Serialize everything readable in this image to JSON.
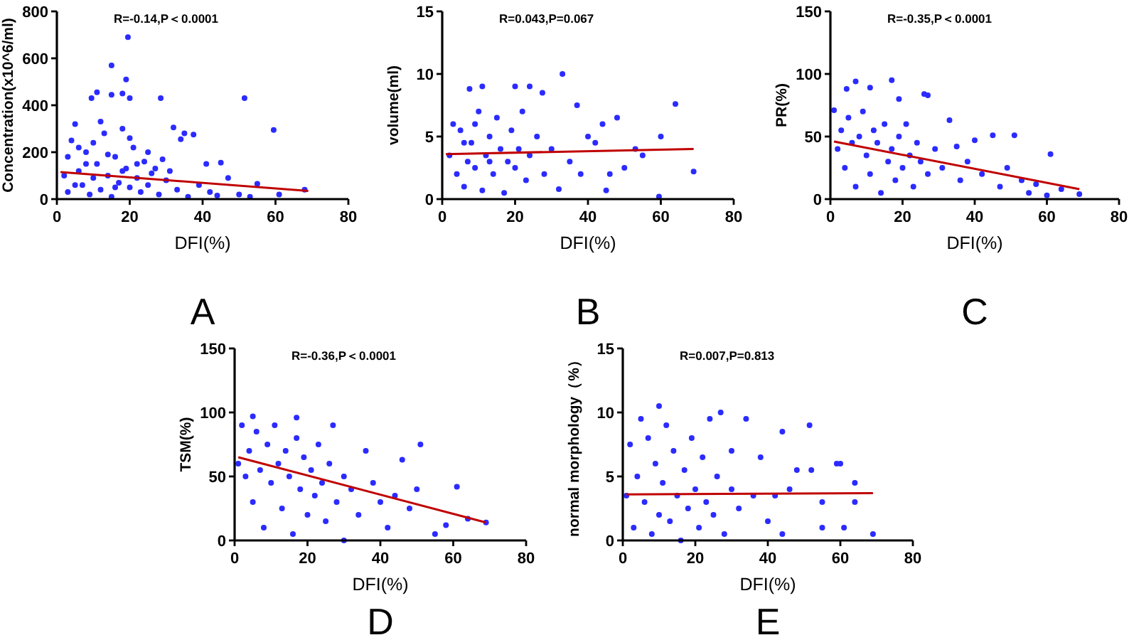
{
  "chart_data": [
    {
      "type": "scatter",
      "title": "A",
      "xlabel": "DFI(%)",
      "ylabel": "Concentration(x10^6/ml)",
      "annotations": [
        "R=-0.14,P＜0.0001"
      ],
      "xlim": [
        0,
        80
      ],
      "xticks": [
        0,
        20,
        40,
        60,
        80
      ],
      "ylim": [
        0,
        800
      ],
      "yticks": [
        0,
        200,
        400,
        600,
        800
      ],
      "grid": false,
      "marker": "circle",
      "series": [
        {
          "color": "#2b2bff",
          "x": [
            19.5,
            15,
            19,
            11,
            15,
            18,
            9.5,
            20,
            28.5,
            51.5,
            59.5,
            32,
            37.5,
            34,
            35,
            41,
            45,
            55,
            61,
            68,
            3,
            4,
            5,
            6,
            7,
            8,
            9,
            10,
            11,
            12,
            13,
            14,
            15,
            16,
            17,
            18,
            19,
            20,
            21,
            22,
            23,
            24,
            25,
            26,
            28,
            30,
            33,
            36,
            39,
            42,
            47,
            50,
            2,
            3,
            5,
            6,
            8,
            10,
            12,
            14,
            16,
            18,
            20,
            22,
            25,
            27,
            29,
            31,
            44,
            53
          ],
          "values": [
            690,
            570,
            510,
            455,
            445,
            450,
            430,
            430,
            430,
            430,
            295,
            305,
            275,
            255,
            280,
            150,
            155,
            65,
            20,
            40,
            180,
            250,
            320,
            120,
            60,
            200,
            20,
            90,
            150,
            40,
            280,
            100,
            10,
            180,
            70,
            300,
            130,
            50,
            220,
            90,
            30,
            160,
            60,
            110,
            20,
            80,
            40,
            10,
            60,
            30,
            90,
            20,
            100,
            30,
            60,
            220,
            150,
            240,
            330,
            190,
            50,
            120,
            260,
            150,
            200,
            130,
            170,
            120,
            15,
            10
          ]
        },
        {
          "type": "line",
          "color": "#c00000",
          "marker": "none",
          "x": [
            1,
            69
          ],
          "values": [
            115,
            35
          ]
        }
      ]
    },
    {
      "type": "scatter",
      "title": "B",
      "xlabel": "DFI(%)",
      "ylabel": "volume(ml)",
      "annotations": [
        "R=0.043,P=0.067"
      ],
      "xlim": [
        0,
        80
      ],
      "xticks": [
        0,
        20,
        40,
        60,
        80
      ],
      "ylim": [
        0,
        15
      ],
      "yticks": [
        0,
        5,
        10,
        15
      ],
      "grid": false,
      "marker": "circle",
      "series": [
        {
          "color": "#2b2bff",
          "x": [
            33,
            11,
            20,
            7.5,
            24,
            27.5,
            64,
            69,
            59.5,
            45,
            55,
            60,
            48,
            44,
            37,
            40,
            3,
            4,
            5,
            6,
            7,
            8,
            9,
            10,
            11,
            12,
            13,
            14,
            15,
            16,
            17,
            18,
            19,
            20,
            21,
            22,
            23,
            24,
            26,
            28,
            30,
            32,
            35,
            38,
            42,
            46,
            50,
            53,
            2,
            6,
            9,
            13
          ],
          "values": [
            10,
            9,
            9,
            8.8,
            9,
            8.5,
            7.6,
            2.2,
            0.2,
            0.7,
            3.5,
            5,
            6.5,
            6,
            7.5,
            5,
            6,
            2,
            5.5,
            1,
            3,
            4.5,
            2.5,
            7,
            0.7,
            3.5,
            5,
            2,
            6.5,
            4,
            0.5,
            3,
            5.5,
            2.5,
            4,
            7,
            1.5,
            3.5,
            5,
            2,
            4,
            0.8,
            3,
            2,
            4.5,
            2,
            2.5,
            4,
            3.5,
            4.5,
            6,
            3
          ]
        },
        {
          "type": "line",
          "color": "#c00000",
          "marker": "none",
          "x": [
            1,
            69
          ],
          "values": [
            3.6,
            4
          ]
        }
      ]
    },
    {
      "type": "scatter",
      "title": "C",
      "xlabel": "DFI(%)",
      "ylabel": "PR(%)",
      "annotations": [
        "R=-0.35,P＜0.0001"
      ],
      "xlim": [
        0,
        80
      ],
      "xticks": [
        0,
        20,
        40,
        60,
        80
      ],
      "ylim": [
        0,
        150
      ],
      "yticks": [
        0,
        50,
        100,
        150
      ],
      "grid": false,
      "marker": "circle",
      "series": [
        {
          "color": "#2b2bff",
          "x": [
            17,
            7,
            4.5,
            11,
            26,
            27,
            19,
            61,
            51,
            45,
            69,
            55,
            60,
            64,
            40,
            35,
            1,
            2,
            3,
            4,
            5,
            6,
            7,
            8,
            9,
            10,
            11,
            12,
            13,
            14,
            15,
            16,
            17,
            18,
            19,
            20,
            21,
            22,
            23,
            24,
            25,
            27,
            29,
            31,
            33,
            36,
            38,
            42,
            47,
            49,
            53,
            57
          ],
          "values": [
            95,
            94,
            88,
            89,
            84,
            83,
            80,
            36,
            51,
            51,
            4,
            5,
            3,
            8,
            47,
            42,
            71,
            40,
            55,
            25,
            65,
            45,
            10,
            50,
            70,
            35,
            20,
            55,
            45,
            5,
            60,
            30,
            40,
            15,
            50,
            25,
            60,
            35,
            10,
            45,
            30,
            20,
            40,
            25,
            63,
            15,
            30,
            20,
            10,
            25,
            15,
            12
          ]
        },
        {
          "type": "line",
          "color": "#c00000",
          "marker": "none",
          "x": [
            1,
            69
          ],
          "values": [
            46,
            8
          ]
        }
      ]
    },
    {
      "type": "scatter",
      "title": "D",
      "xlabel": "DFI(%)",
      "ylabel": "TSM(%)",
      "annotations": [
        "R=-0.36,P＜0.0001"
      ],
      "xlim": [
        0,
        80
      ],
      "xticks": [
        0,
        20,
        40,
        60,
        80
      ],
      "ylim": [
        0,
        150
      ],
      "yticks": [
        0,
        50,
        100,
        150
      ],
      "grid": false,
      "marker": "circle",
      "series": [
        {
          "color": "#2b2bff",
          "x": [
            5,
            17,
            51,
            61,
            69,
            55,
            64,
            2,
            3,
            4,
            5,
            6,
            7,
            8,
            9,
            10,
            11,
            12,
            13,
            14,
            15,
            16,
            17,
            18,
            19,
            20,
            21,
            22,
            23,
            24,
            25,
            26,
            27,
            28,
            30,
            32,
            34,
            36,
            38,
            40,
            42,
            44,
            46,
            48,
            50,
            1,
            30,
            58
          ],
          "values": [
            97,
            96,
            75,
            42,
            14,
            5,
            17,
            90,
            50,
            70,
            30,
            85,
            55,
            10,
            75,
            45,
            90,
            60,
            25,
            70,
            50,
            5,
            80,
            40,
            65,
            20,
            55,
            35,
            75,
            45,
            15,
            60,
            90,
            30,
            50,
            40,
            20,
            70,
            45,
            30,
            10,
            35,
            63,
            25,
            40,
            60,
            0,
            12
          ]
        },
        {
          "type": "line",
          "color": "#c00000",
          "marker": "none",
          "x": [
            1,
            69
          ],
          "values": [
            65,
            14
          ]
        }
      ]
    },
    {
      "type": "scatter",
      "title": "E",
      "xlabel": "DFI(%)",
      "ylabel": "normal morphology（%）",
      "annotations": [
        "R=0.007,P=0.813"
      ],
      "xlim": [
        0,
        80
      ],
      "xticks": [
        0,
        20,
        40,
        60,
        80
      ],
      "ylim": [
        0,
        15
      ],
      "yticks": [
        0,
        5,
        10,
        15
      ],
      "grid": false,
      "marker": "circle",
      "series": [
        {
          "color": "#2b2bff",
          "x": [
            10,
            27,
            51.5,
            44,
            59,
            60,
            64,
            64,
            69,
            61,
            55,
            55,
            48,
            52,
            46,
            2,
            3,
            4,
            5,
            6,
            7,
            8,
            9,
            10,
            11,
            12,
            13,
            14,
            15,
            16,
            17,
            18,
            19,
            20,
            21,
            22,
            23,
            24,
            25,
            26,
            28,
            30,
            32,
            34,
            36,
            38,
            40,
            42,
            44,
            30,
            1
          ],
          "values": [
            10.5,
            10,
            9,
            8.5,
            6,
            6,
            4.5,
            3,
            0.5,
            1,
            1,
            3,
            5.5,
            5.5,
            4,
            7.5,
            1,
            5,
            9.5,
            3,
            8,
            0.5,
            6,
            2,
            4.5,
            9,
            1.5,
            7,
            3.5,
            0,
            5.5,
            2.5,
            8,
            4,
            1,
            6.5,
            3,
            9.5,
            2,
            5,
            0.5,
            4,
            2.5,
            9.5,
            3.5,
            6.5,
            1.5,
            3.5,
            0.5,
            7,
            3.5
          ]
        },
        {
          "type": "line",
          "color": "#c00000",
          "marker": "none",
          "x": [
            1,
            69
          ],
          "values": [
            3.6,
            3.7
          ]
        }
      ]
    }
  ]
}
